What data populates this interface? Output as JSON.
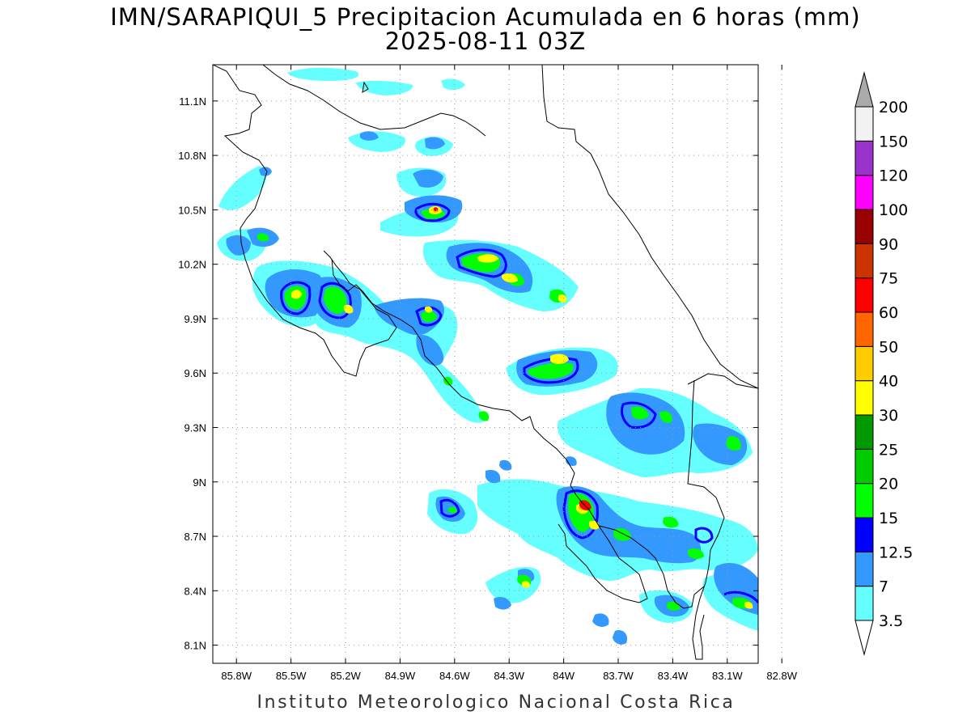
{
  "title": {
    "line1": "IMN/SARAPIQUI_5 Precipitacion Acumulada en 6 horas (mm)",
    "line2": "2025-08-11 03Z"
  },
  "footer": "Instituto Meteorologico Nacional Costa Rica",
  "map": {
    "lon_range": [
      -85.93,
      -82.93
    ],
    "lat_range": [
      8.0,
      11.3
    ],
    "lon_ticks": [
      -85.8,
      -85.5,
      -85.2,
      -84.9,
      -84.6,
      -84.3,
      -84.0,
      -83.7,
      -83.4,
      -83.1,
      -82.8
    ],
    "lon_labels": [
      "85.8W",
      "85.5W",
      "85.2W",
      "84.9W",
      "84.6W",
      "84.3W",
      "84W",
      "83.7W",
      "83.4W",
      "83.1W",
      "82.8W"
    ],
    "lat_ticks": [
      8.1,
      8.4,
      8.7,
      9.0,
      9.3,
      9.6,
      9.9,
      10.2,
      10.5,
      10.8,
      11.1
    ],
    "lat_labels": [
      "8.1N",
      "8.4N",
      "8.7N",
      "9N",
      "9.3N",
      "9.6N",
      "9.9N",
      "10.2N",
      "10.5N",
      "10.8N",
      "11.1N"
    ],
    "grid": "dotted"
  },
  "colorbar": {
    "levels": [
      "3.5",
      "7",
      "12.5",
      "15",
      "20",
      "25",
      "30",
      "40",
      "50",
      "60",
      "75",
      "90",
      "100",
      "120",
      "150",
      "200"
    ],
    "colors": [
      "#66ffff",
      "#3399ff",
      "#0000ff",
      "#00ff00",
      "#00cc00",
      "#009900",
      "#ffff00",
      "#ffcc00",
      "#ff6600",
      "#ff0000",
      "#cc3300",
      "#990000",
      "#ff00ff",
      "#9933cc",
      "#f2f2f2",
      "#aaaaaa"
    ],
    "units": "mm"
  },
  "colors": {
    "light": "#66ffff",
    "medium": "#3399ff",
    "dark_blue": "#0000ff",
    "bright_green": "#00ff00",
    "green": "#00cc00",
    "dark_green": "#009900",
    "yellow": "#ffff00",
    "orange_yellow": "#ffcc00",
    "red": "#ff0000"
  }
}
